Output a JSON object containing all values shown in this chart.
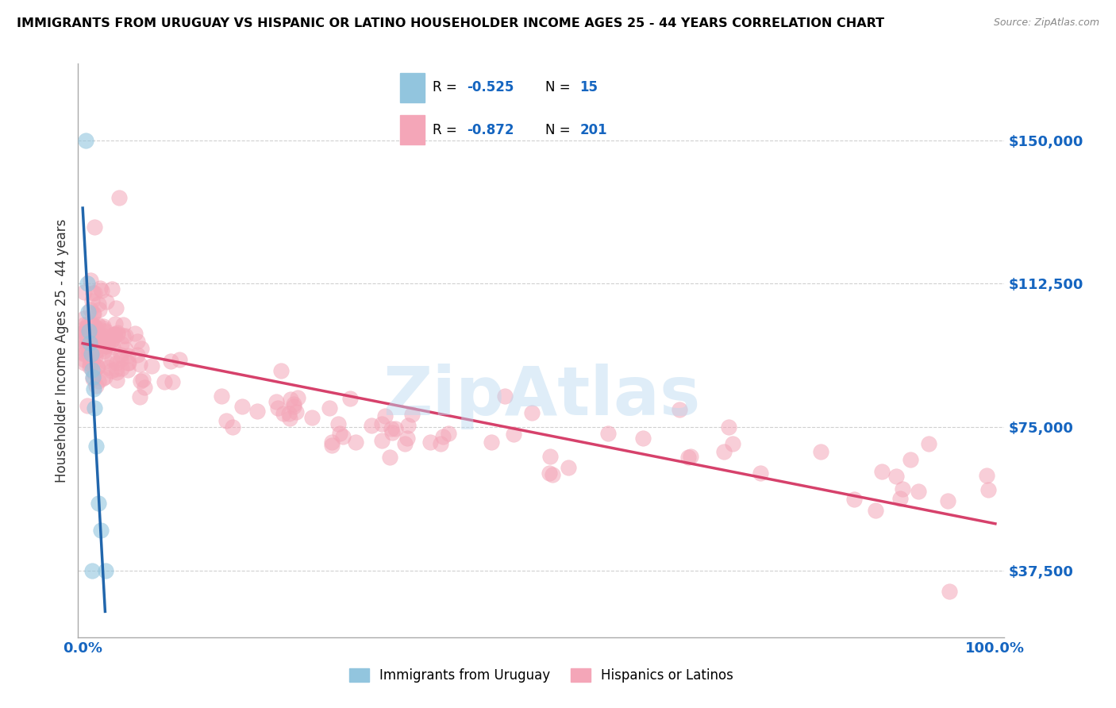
{
  "title": "IMMIGRANTS FROM URUGUAY VS HISPANIC OR LATINO HOUSEHOLDER INCOME AGES 25 - 44 YEARS CORRELATION CHART",
  "source": "Source: ZipAtlas.com",
  "ylabel": "Householder Income Ages 25 - 44 years",
  "yticks": [
    37500,
    75000,
    112500,
    150000
  ],
  "ytick_labels": [
    "$37,500",
    "$75,000",
    "$112,500",
    "$150,000"
  ],
  "xtick_labels": [
    "0.0%",
    "100.0%"
  ],
  "blue_color": "#92c5de",
  "pink_color": "#f4a6b8",
  "blue_line_color": "#2166ac",
  "pink_line_color": "#d6416b",
  "watermark": "ZipAtlas",
  "background_color": "#ffffff",
  "grid_color": "#d0d0d0",
  "title_color": "#000000",
  "tick_label_color": "#1565c0",
  "legend_box_color": "#e8f0fa"
}
